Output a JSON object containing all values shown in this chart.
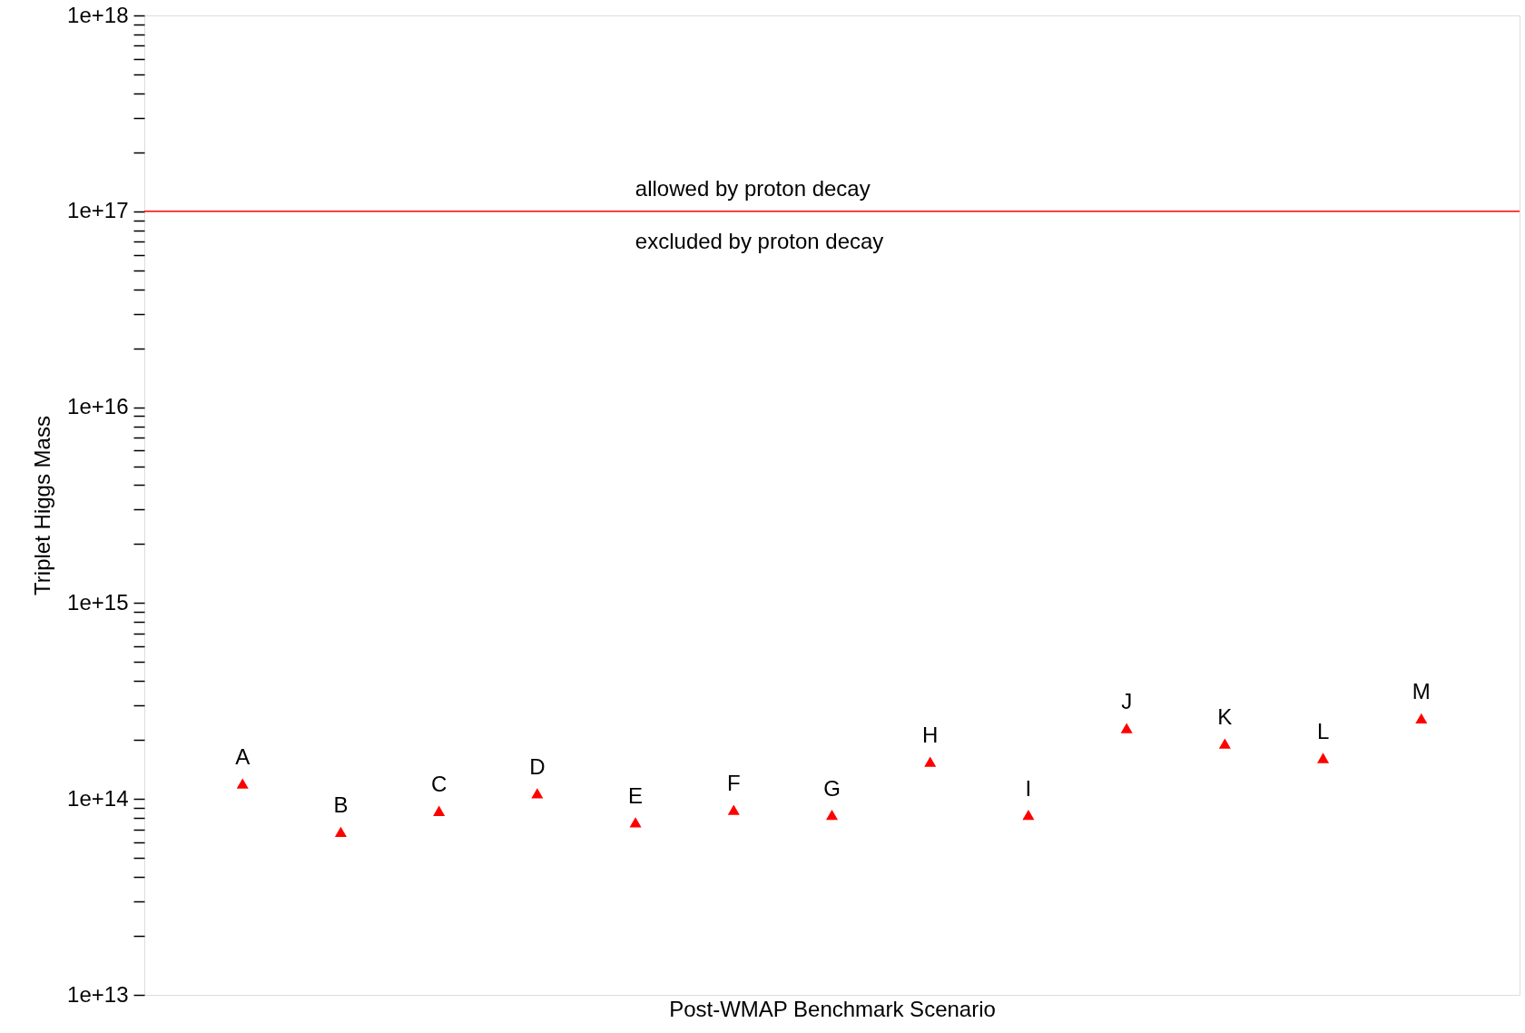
{
  "chart_data": {
    "type": "scatter",
    "xlabel": "Post-WMAP Benchmark Scenario",
    "ylabel": "Triplet Higgs Mass",
    "categories": [
      null,
      null,
      null,
      null,
      null,
      null,
      null,
      null,
      null,
      null,
      null,
      null,
      null
    ],
    "series": [
      {
        "color": "#ff0000",
        "values": [
          120000000000000.0,
          68000000000000.0,
          87000000000000.0,
          107000000000000.0,
          76000000000000.0,
          88000000000000.0,
          83000000000000.0,
          155000000000000.0,
          83000000000000.0,
          230000000000000.0,
          192000000000000.0,
          162000000000000.0,
          258000000000000.0
        ]
      }
    ],
    "ylim": [
      10000000000000.0,
      1e+18
    ],
    "log": "y",
    "grid": false,
    "marker": "triangle",
    "tick_labels": "y",
    "yticks": [
      {
        "value": 10000000000000.0,
        "label": "1e+13"
      },
      {
        "value": 20000000000000.0,
        "label": null
      },
      {
        "value": 30000000000000.0,
        "label": null
      },
      {
        "value": 40000000000000.0,
        "label": null
      },
      {
        "value": 50000000000000.0,
        "label": null
      },
      {
        "value": 60000000000000.0,
        "label": null
      },
      {
        "value": 70000000000000.0,
        "label": null
      },
      {
        "value": 80000000000000.0,
        "label": null
      },
      {
        "value": 90000000000000.0,
        "label": null
      },
      {
        "value": 100000000000000.0,
        "label": "1e+14"
      },
      {
        "value": 200000000000000.0,
        "label": null
      },
      {
        "value": 300000000000000.0,
        "label": null
      },
      {
        "value": 400000000000000.0,
        "label": null
      },
      {
        "value": 500000000000000.0,
        "label": null
      },
      {
        "value": 600000000000000.0,
        "label": null
      },
      {
        "value": 700000000000000.0,
        "label": null
      },
      {
        "value": 800000000000000.0,
        "label": null
      },
      {
        "value": 900000000000000.0,
        "label": null
      },
      {
        "value": 1000000000000000.0,
        "label": "1e+15"
      },
      {
        "value": 2000000000000000.0,
        "label": null
      },
      {
        "value": 3000000000000000.0,
        "label": null
      },
      {
        "value": 4000000000000000.0,
        "label": null
      },
      {
        "value": 5000000000000000.0,
        "label": null
      },
      {
        "value": 6000000000000000.0,
        "label": null
      },
      {
        "value": 7000000000000000.0,
        "label": null
      },
      {
        "value": 8000000000000000.0,
        "label": null
      },
      {
        "value": 9000000000000000.0,
        "label": null
      },
      {
        "value": 1e+16,
        "label": "1e+16"
      },
      {
        "value": 2e+16,
        "label": null
      },
      {
        "value": 3e+16,
        "label": null
      },
      {
        "value": 4e+16,
        "label": null
      },
      {
        "value": 5e+16,
        "label": null
      },
      {
        "value": 6e+16,
        "label": null
      },
      {
        "value": 7e+16,
        "label": null
      },
      {
        "value": 8e+16,
        "label": null
      },
      {
        "value": 9e+16,
        "label": null
      },
      {
        "value": 1e+17,
        "label": "1e+17"
      },
      {
        "value": 2e+17,
        "label": null
      },
      {
        "value": 3e+17,
        "label": null
      },
      {
        "value": 4e+17,
        "label": null
      },
      {
        "value": 5e+17,
        "label": null
      },
      {
        "value": 6e+17,
        "label": null
      },
      {
        "value": 7e+17,
        "label": null
      },
      {
        "value": 8e+17,
        "label": null
      },
      {
        "value": 9e+17,
        "label": null
      },
      {
        "value": 1e+18,
        "label": "1e+18"
      }
    ],
    "ref_lines": [
      {
        "axis": "y",
        "value": 1e+17,
        "color": "#ff0000"
      }
    ],
    "annotations": [
      "allowed by proton decay",
      "excluded by proton decay",
      {
        "text": "A",
        "y": 120000000000000.0
      },
      {
        "text": "B",
        "y": 68000000000000.0
      },
      {
        "text": "C",
        "y": 87000000000000.0
      },
      {
        "text": "D",
        "y": 107000000000000.0
      },
      {
        "text": "E",
        "y": 76000000000000.0
      },
      {
        "text": "F",
        "y": 88000000000000.0
      },
      {
        "text": "G",
        "y": 83000000000000.0
      },
      {
        "text": "H",
        "y": 155000000000000.0
      },
      {
        "text": "I",
        "y": 83000000000000.0
      },
      {
        "text": "J",
        "y": 230000000000000.0
      },
      {
        "text": "K",
        "y": 192000000000000.0
      },
      {
        "text": "L",
        "y": 162000000000000.0
      },
      {
        "text": "M",
        "y": 258000000000000.0
      }
    ]
  }
}
